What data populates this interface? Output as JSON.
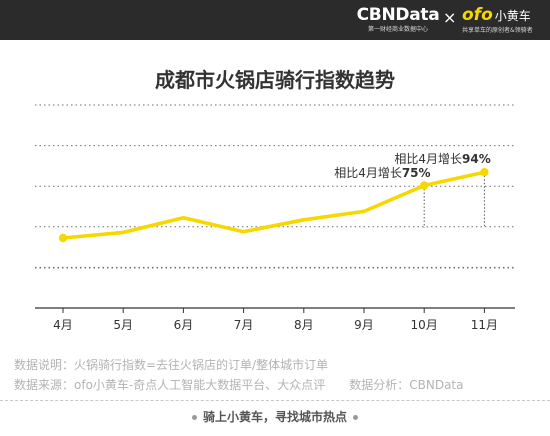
{
  "header": {
    "brand_main": "CBNData",
    "brand_sub": "第一财经商业数据中心",
    "cross": "×",
    "partner_word": "ofo",
    "partner_cn": "小黄车",
    "partner_sub": "共享单车的原创者&领骑者",
    "bg_color": "#2b2b2b"
  },
  "chart_data": {
    "type": "line",
    "title": "成都市火锅店骑行指数趋势",
    "categories": [
      "4月",
      "5月",
      "6月",
      "7月",
      "8月",
      "9月",
      "10月",
      "11月"
    ],
    "series": [
      {
        "values": [
          100,
          108,
          129,
          109,
          126,
          138,
          175,
          194
        ],
        "color": "#f5d800"
      }
    ],
    "ylim": [
      0,
      290
    ],
    "grid": true,
    "annotations": [
      {
        "index": 6,
        "text": "相比4月增长",
        "value": "75%"
      },
      {
        "index": 7,
        "text": "相比4月增长",
        "value": "94%"
      }
    ]
  },
  "notes": {
    "line1": "数据说明：火锅骑行指数=去往火锅店的订单/整体城市订单",
    "line2_source": "数据来源：ofo小黄车-奇点人工智能大数据平台、大众点评",
    "line2_analysis": "数据分析：CBNData"
  },
  "footer": {
    "slogan": "骑上小黄车，寻找城市热点"
  }
}
